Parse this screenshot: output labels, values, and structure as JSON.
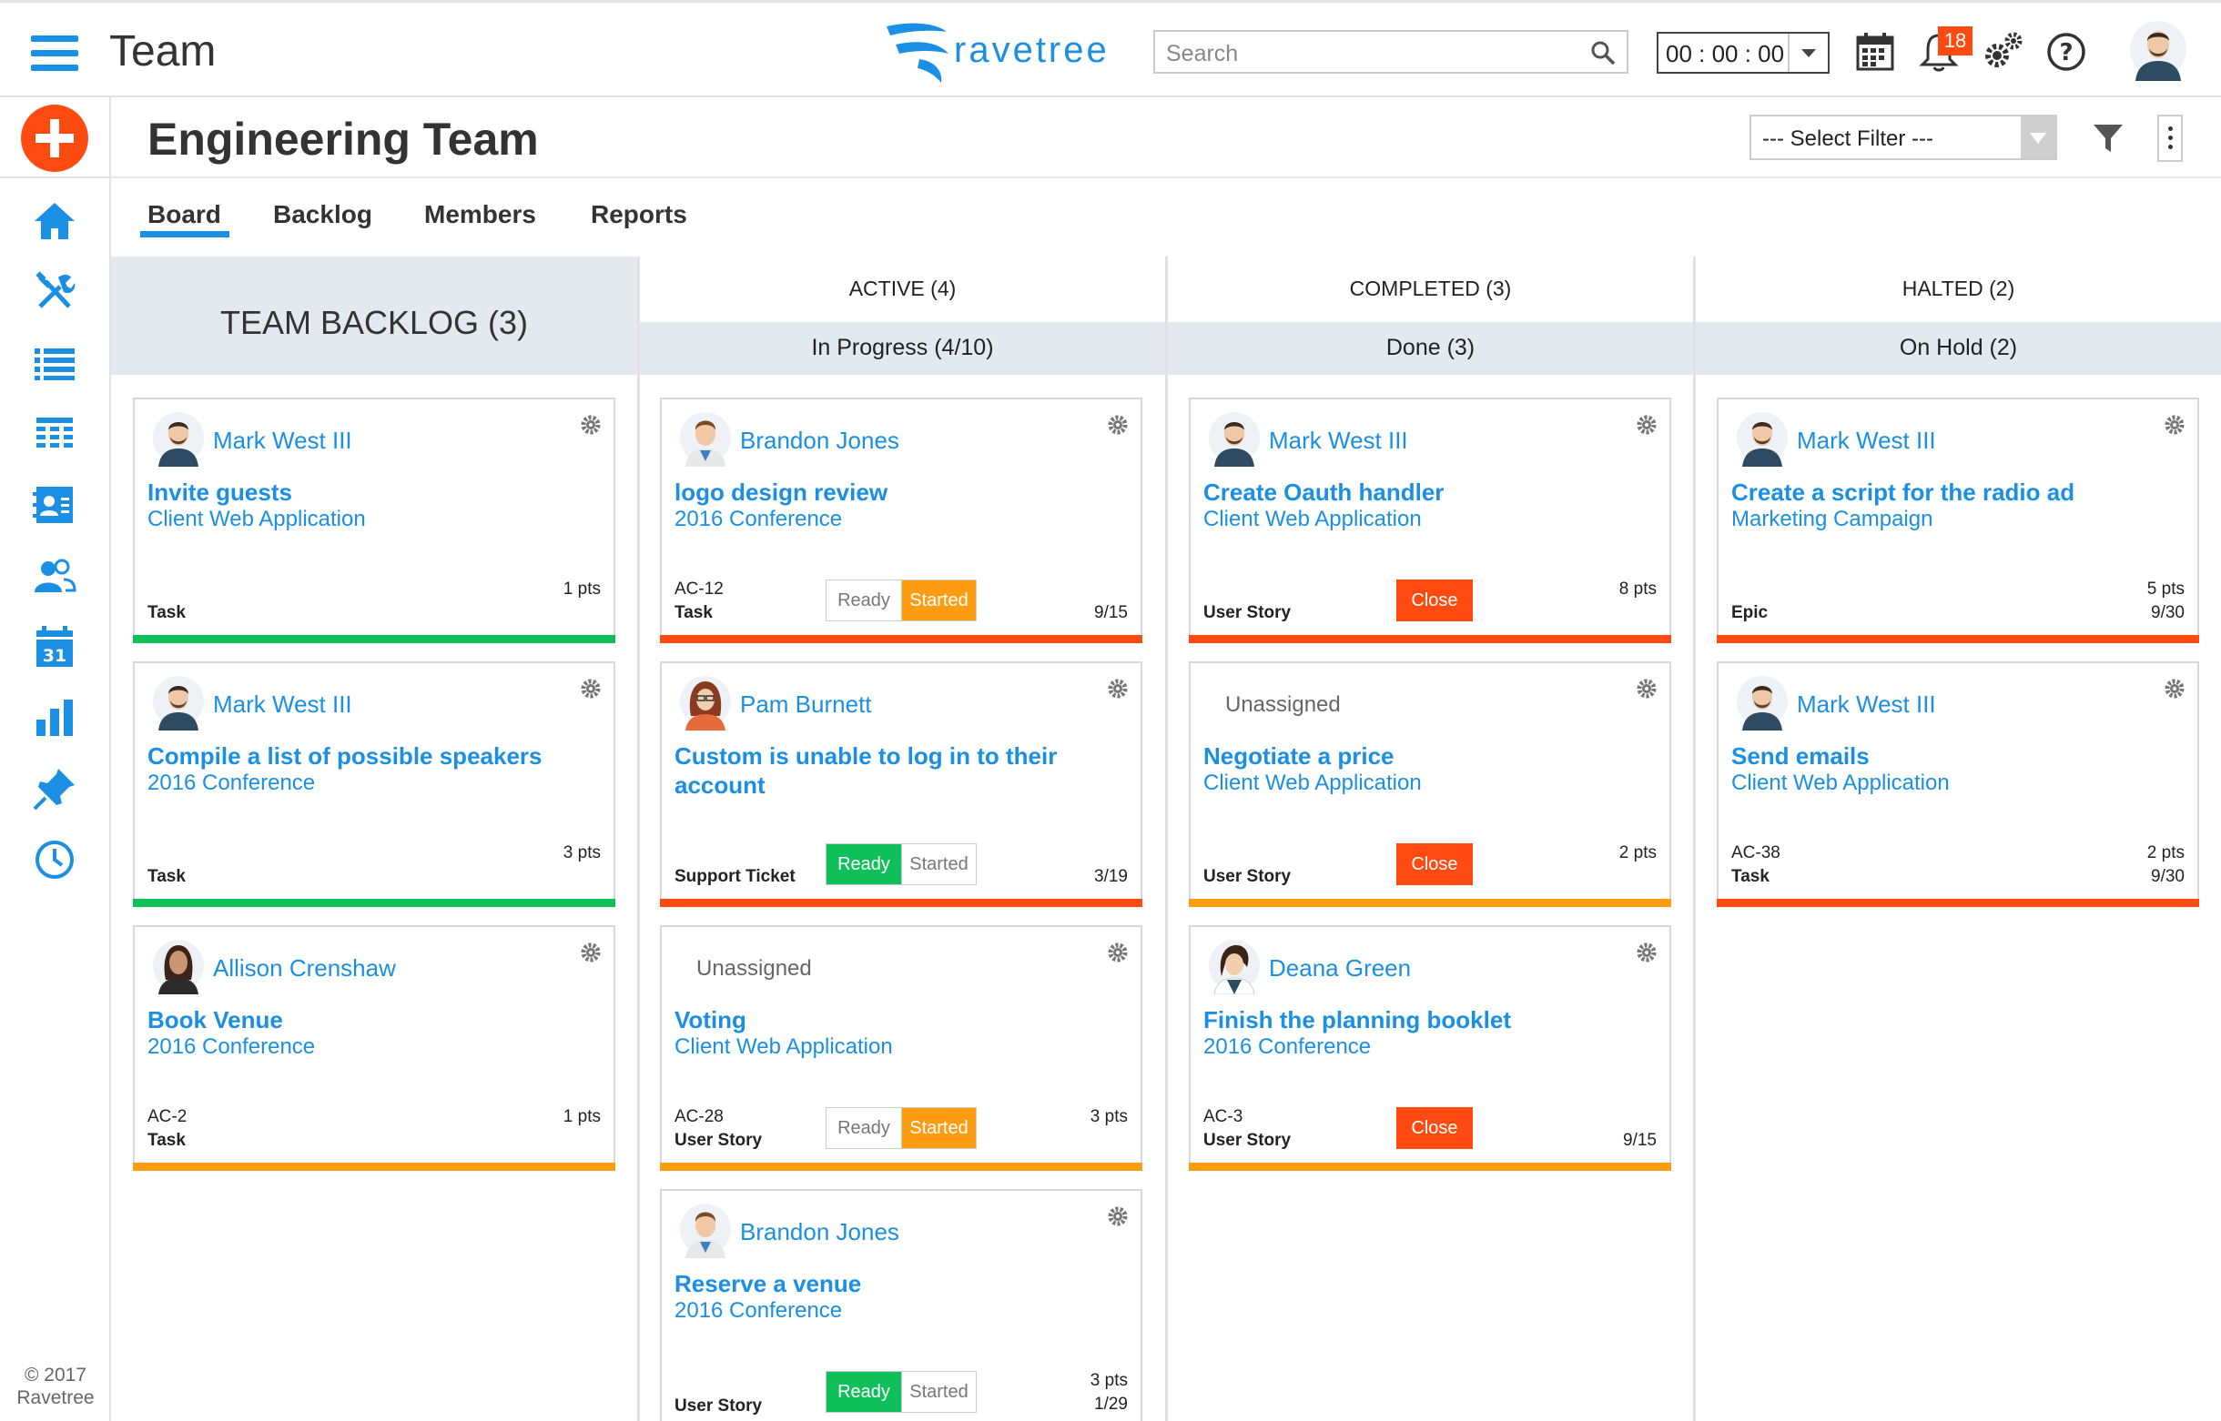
{
  "header": {
    "app_title": "Team",
    "logo_text": "ravetree",
    "search_placeholder": "Search",
    "timer": "00 : 00 : 00",
    "notification_count": "18"
  },
  "sidebar": {
    "copyright_line1": "© 2017",
    "copyright_line2": "Ravetree"
  },
  "page": {
    "title": "Engineering Team",
    "filter_select": "--- Select Filter ---"
  },
  "tabs": [
    {
      "label": "Board"
    },
    {
      "label": "Backlog"
    },
    {
      "label": "Members"
    },
    {
      "label": "Reports"
    }
  ],
  "status_labels": {
    "ready": "Ready",
    "started": "Started",
    "close": "Close"
  },
  "columns": {
    "backlog": {
      "title": "TEAM BACKLOG (3)",
      "cards": [
        {
          "assignee": "Mark West III",
          "title": "Invite guests",
          "project": "Client Web Application",
          "code": "",
          "type": "Task",
          "pts": "1 pts",
          "due": "",
          "bar": "#0fc05a"
        },
        {
          "assignee": "Mark West III",
          "title": "Compile a list of possible speakers",
          "project": "2016 Conference",
          "code": "",
          "type": "Task",
          "pts": "3 pts",
          "due": "",
          "bar": "#0fc05a"
        },
        {
          "assignee": "Allison Crenshaw",
          "title": "Book Venue",
          "project": "2016 Conference",
          "code": "AC-2",
          "type": "Task",
          "pts": "1 pts",
          "due": "",
          "bar": "#ff9c12"
        }
      ]
    },
    "active": {
      "group": "ACTIVE (4)",
      "stage": "In Progress (4/10)",
      "cards": [
        {
          "assignee": "Brandon Jones",
          "title": "logo design review",
          "project": "2016 Conference",
          "code": "AC-12",
          "type": "Task",
          "pts": "",
          "due": "9/15",
          "bar": "#ff4b12"
        },
        {
          "assignee": "Pam Burnett",
          "title": "Custom is unable to log in to their account",
          "project": "",
          "code": "",
          "type": "Support Ticket",
          "pts": "",
          "due": "3/19",
          "bar": "#ff4b12"
        },
        {
          "assignee": "Unassigned",
          "title": "Voting",
          "project": "Client Web Application",
          "code": "AC-28",
          "type": "User Story",
          "pts": "3 pts",
          "due": "",
          "bar": "#ff9c12"
        },
        {
          "assignee": "Brandon Jones",
          "title": "Reserve a venue",
          "project": "2016 Conference",
          "code": "",
          "type": "User Story",
          "pts": "3 pts",
          "due": "1/29",
          "bar": "#ff9c12"
        }
      ]
    },
    "completed": {
      "group": "COMPLETED (3)",
      "stage": "Done (3)",
      "cards": [
        {
          "assignee": "Mark West III",
          "title": "Create Oauth handler",
          "project": "Client Web Application",
          "code": "",
          "type": "User Story",
          "pts": "8 pts",
          "due": "",
          "bar": "#ff4b12"
        },
        {
          "assignee": "Unassigned",
          "title": "Negotiate a price",
          "project": "Client Web Application",
          "code": "",
          "type": "User Story",
          "pts": "2 pts",
          "due": "",
          "bar": "#ff9c12"
        },
        {
          "assignee": "Deana Green",
          "title": "Finish the planning booklet",
          "project": "2016 Conference",
          "code": "AC-3",
          "type": "User Story",
          "pts": "",
          "due": "9/15",
          "bar": "#ff9c12"
        }
      ]
    },
    "halted": {
      "group": "HALTED (2)",
      "stage": "On Hold (2)",
      "cards": [
        {
          "assignee": "Mark West III",
          "title": "Create a script for the radio ad",
          "project": "Marketing Campaign",
          "code": "",
          "type": "Epic",
          "pts": "5 pts",
          "due": "9/30",
          "bar": "#ff4b12"
        },
        {
          "assignee": "Mark West III",
          "title": "Send emails",
          "project": "Client Web Application",
          "code": "AC-38",
          "type": "Task",
          "pts": "2 pts",
          "due": "9/30",
          "bar": "#ff4b12"
        }
      ]
    }
  },
  "colors": {
    "accent": "#1a8fe3",
    "danger": "#ff4b12",
    "warning": "#ff9c12",
    "success": "#0fc05a"
  }
}
